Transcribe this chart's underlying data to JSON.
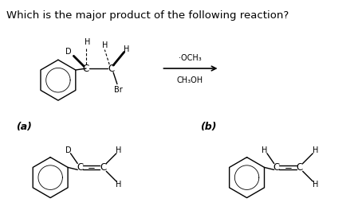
{
  "title": "Which is the major product of the following reaction?",
  "title_fontsize": 9.5,
  "bg_color": "#ffffff",
  "text_color": "#000000",
  "figure_width": 4.54,
  "figure_height": 2.69,
  "dpi": 100,
  "reagent1": "·OCH₃",
  "reagent2": "CH₃OH",
  "label_a": "(a)",
  "label_b": "(b)"
}
